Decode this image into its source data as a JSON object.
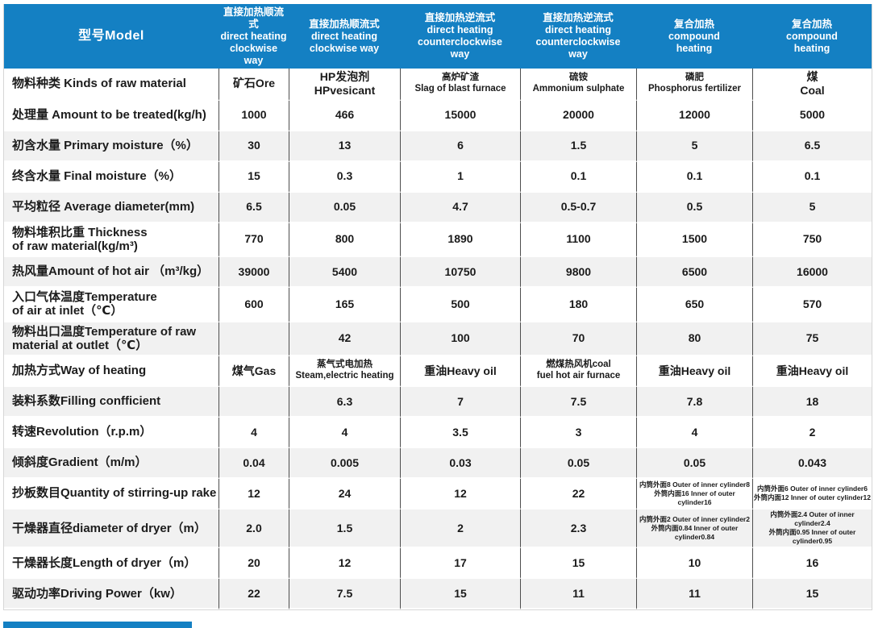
{
  "colors": {
    "header_bg": "#1480c3",
    "stripe_bg": "#f1f1f1",
    "grid_line": "#4e4e4e",
    "accent_bar": "#1480c3"
  },
  "table": {
    "header": {
      "model_label": "型号Model",
      "columns": [
        {
          "label": "直接加热顺流式\ndirect heating\nclockwise way"
        },
        {
          "label": "直接加热顺流式\ndirect heating\nclockwise way"
        },
        {
          "label": "直接加热逆流式\ndirect heating\ncounterclockwise\nway"
        },
        {
          "label": "直接加热逆流式\ndirect heating\ncounterclockwise\nway"
        },
        {
          "label": "复合加热\ncompound\nheating"
        },
        {
          "label": "复合加热\ncompound\nheating"
        }
      ]
    },
    "rows": [
      {
        "label": "物料种类 Kinds of raw material",
        "values": [
          "矿石Ore",
          "HP发泡剂\nHPvesicant",
          "高炉矿渣\nSlag of blast furnace",
          "硫铵\nAmmonium sulphate",
          "磷肥\nPhosphorus fertilizer",
          "煤\nCoal"
        ]
      },
      {
        "label": "处理量 Amount to be treated(kg/h)",
        "values": [
          "1000",
          "466",
          "15000",
          "20000",
          "12000",
          "5000"
        ]
      },
      {
        "label": "初含水量 Primary moisture（%）",
        "values": [
          "30",
          "13",
          "6",
          "1.5",
          "5",
          "6.5"
        ]
      },
      {
        "label": "终含水量 Final moisture（%）",
        "values": [
          "15",
          "0.3",
          "1",
          "0.1",
          "0.1",
          "0.1"
        ]
      },
      {
        "label": "平均粒径 Average diameter(mm)",
        "values": [
          "6.5",
          "0.05",
          "4.7",
          "0.5-0.7",
          "0.5",
          "5"
        ]
      },
      {
        "label": "物料堆积比重 Thickness\nof raw material(kg/m³)",
        "values": [
          "770",
          "800",
          "1890",
          "1100",
          "1500",
          "750"
        ]
      },
      {
        "label": "热风量Amount of hot air （m³/kg）",
        "values": [
          "39000",
          "5400",
          "10750",
          "9800",
          "6500",
          "16000"
        ]
      },
      {
        "label": "入口气体温度Temperature\nof air at inlet（℃）",
        "values": [
          "600",
          "165",
          "500",
          "180",
          "650",
          "570"
        ]
      },
      {
        "label": "物料出口温度Temperature of raw\nmaterial at outlet（℃）",
        "values": [
          "",
          "42",
          "100",
          "70",
          "80",
          "75"
        ]
      },
      {
        "label": "加热方式Way of heating",
        "values": [
          "煤气Gas",
          "蒸气式电加热\nSteam,electric heating",
          "重油Heavy oil",
          "燃煤热风机coal\nfuel hot air furnace",
          "重油Heavy oil",
          "重油Heavy oil"
        ]
      },
      {
        "label": "装料系数Filling confficient",
        "values": [
          "",
          "6.3",
          "7",
          "7.5",
          "7.8",
          "18"
        ]
      },
      {
        "label": "转速Revolution（r.p.m）",
        "values": [
          "4",
          "4",
          "3.5",
          "3",
          "4",
          "2"
        ]
      },
      {
        "label": "倾斜度Gradient（m/m）",
        "values": [
          "0.04",
          "0.005",
          "0.03",
          "0.05",
          "0.05",
          "0.043"
        ]
      },
      {
        "label": "抄板数目Quantity of stirring-up rake",
        "values": [
          "12",
          "24",
          "12",
          "22",
          "内筒外面8 Outer of inner cylinder8\n外筒内面16 Inner of outer cylinder16",
          "内筒外面6 Outer of inner cylinder6\n外筒内面12 Inner of outer cylinder12"
        ]
      },
      {
        "label": "干燥器直径diameter of dryer（m）",
        "values": [
          "2.0",
          "1.5",
          "2",
          "2.3",
          "内筒外面2 Outer of inner cylinder2\n外筒内面0.84 Inner of outer cylinder0.84",
          "内筒外面2.4 Outer of inner cylinder2.4\n外筒内面0.95 Inner of outer cylinder0.95"
        ]
      },
      {
        "label": "干燥器长度Length of dryer（m）",
        "values": [
          "20",
          "12",
          "17",
          "15",
          "10",
          "16"
        ]
      },
      {
        "label": "驱动功率Driving Power（kw）",
        "values": [
          "22",
          "7.5",
          "15",
          "11",
          "11",
          "15"
        ]
      }
    ]
  }
}
